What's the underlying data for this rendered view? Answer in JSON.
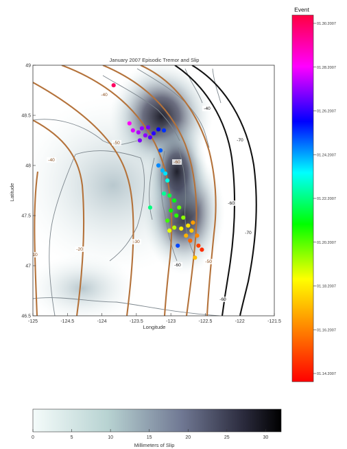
{
  "figure": {
    "title": "January 2007 Episodic Tremor and Slip",
    "xlabel": "Longitude",
    "ylabel": "Latitude",
    "xlim": [
      -125,
      -121.5
    ],
    "ylim": [
      46.5,
      49
    ],
    "x_ticks": [
      "-125",
      "-124.5",
      "-124",
      "-123.5",
      "-123",
      "-122.5",
      "-122",
      "-121.5"
    ],
    "y_ticks": [
      "49",
      "48.5",
      "48",
      "47.5",
      "47",
      "46.5"
    ]
  },
  "contours": {
    "colors": {
      "slab": "#b4723a",
      "slip": "#111111"
    },
    "slab_labels": [
      "-10",
      "-20",
      "-30",
      "-40",
      "-50",
      "-60",
      "-50",
      "-40"
    ],
    "slip_labels": [
      "-40",
      "-60",
      "-70",
      "-60",
      "-70",
      "-60"
    ]
  },
  "event_colorbar": {
    "title": "Event",
    "ticks": [
      "01.30.2007",
      "01.28.2007",
      "01.26.2007",
      "01.24.2007",
      "01.22.2007",
      "01.20.2007",
      "01.18.2007",
      "01.16.2007",
      "01.14.2007"
    ],
    "colors": [
      "#ff0000",
      "#ff8000",
      "#ffff00",
      "#00ff00",
      "#00ffff",
      "#0000ff",
      "#ff00ff",
      "#ff0040"
    ]
  },
  "slip_colorbar": {
    "label": "Millimeters of Slip",
    "ticks": [
      "0",
      "5",
      "10",
      "15",
      "20",
      "25",
      "30"
    ],
    "range": [
      0,
      32
    ]
  },
  "chart_data": {
    "type": "scatter",
    "title": "January 2007 Episodic Tremor and Slip",
    "xlabel": "Longitude",
    "ylabel": "Latitude",
    "xlim": [
      -125,
      -121.5
    ],
    "ylim": [
      46.5,
      49
    ],
    "colorbar": {
      "label": "Event",
      "start": "01.14.2007",
      "end": "01.30.2007"
    },
    "points": [
      {
        "x": -123.83,
        "y": 48.8,
        "day": 29.6
      },
      {
        "x": -123.6,
        "y": 48.42,
        "day": 27.8
      },
      {
        "x": -123.55,
        "y": 48.35,
        "day": 27.4
      },
      {
        "x": -123.47,
        "y": 48.33,
        "day": 27.0
      },
      {
        "x": -123.42,
        "y": 48.37,
        "day": 26.8
      },
      {
        "x": -123.37,
        "y": 48.3,
        "day": 26.7
      },
      {
        "x": -123.33,
        "y": 48.38,
        "day": 26.5
      },
      {
        "x": -123.45,
        "y": 48.25,
        "day": 26.6
      },
      {
        "x": -123.3,
        "y": 48.28,
        "day": 26.2
      },
      {
        "x": -123.25,
        "y": 48.32,
        "day": 25.8
      },
      {
        "x": -123.18,
        "y": 48.36,
        "day": 25.4
      },
      {
        "x": -123.1,
        "y": 48.35,
        "day": 25.0
      },
      {
        "x": -123.15,
        "y": 48.15,
        "day": 24.6
      },
      {
        "x": -123.18,
        "y": 48.0,
        "day": 24.2
      },
      {
        "x": -123.12,
        "y": 47.95,
        "day": 23.8
      },
      {
        "x": -123.08,
        "y": 47.92,
        "day": 23.4
      },
      {
        "x": -123.05,
        "y": 47.85,
        "day": 22.9
      },
      {
        "x": -123.1,
        "y": 47.72,
        "day": 22.2
      },
      {
        "x": -123.3,
        "y": 47.58,
        "day": 22.0
      },
      {
        "x": -123.02,
        "y": 47.7,
        "day": 21.5
      },
      {
        "x": -122.95,
        "y": 47.65,
        "day": 21.0
      },
      {
        "x": -123.0,
        "y": 47.55,
        "day": 20.8
      },
      {
        "x": -122.92,
        "y": 47.5,
        "day": 20.5
      },
      {
        "x": -123.05,
        "y": 47.45,
        "day": 20.3
      },
      {
        "x": -122.88,
        "y": 47.58,
        "day": 20.0
      },
      {
        "x": -122.82,
        "y": 47.48,
        "day": 19.6
      },
      {
        "x": -122.95,
        "y": 47.38,
        "day": 19.2
      },
      {
        "x": -123.02,
        "y": 47.35,
        "day": 18.8
      },
      {
        "x": -122.85,
        "y": 47.37,
        "day": 18.4
      },
      {
        "x": -122.75,
        "y": 47.4,
        "day": 18.0
      },
      {
        "x": -122.7,
        "y": 47.35,
        "day": 17.6
      },
      {
        "x": -122.78,
        "y": 47.3,
        "day": 17.2
      },
      {
        "x": -122.68,
        "y": 47.43,
        "day": 16.8
      },
      {
        "x": -122.62,
        "y": 47.3,
        "day": 16.4
      },
      {
        "x": -122.72,
        "y": 47.25,
        "day": 15.8
      },
      {
        "x": -122.6,
        "y": 47.2,
        "day": 15.2
      },
      {
        "x": -122.55,
        "y": 47.16,
        "day": 14.8
      },
      {
        "x": -122.65,
        "y": 47.08,
        "day": 17.4
      },
      {
        "x": -122.9,
        "y": 47.2,
        "day": 24.8
      }
    ]
  }
}
